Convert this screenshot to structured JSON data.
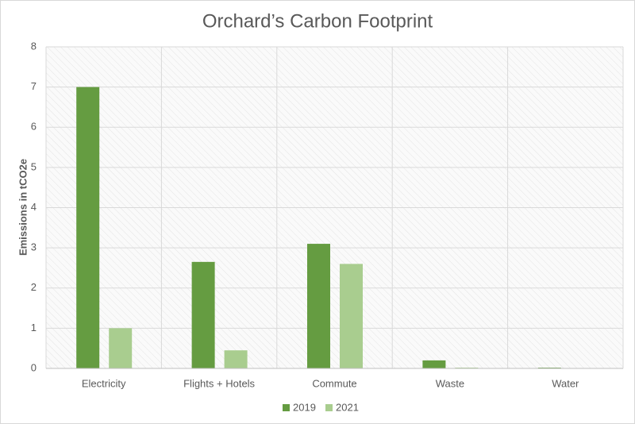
{
  "chart_data": {
    "type": "bar",
    "title": "Orchard’s Carbon Footprint",
    "y_label": "Emissions in tCO2e",
    "categories": [
      "Electricity",
      "Flights + Hotels",
      "Commute",
      "Waste",
      "Water"
    ],
    "series": [
      {
        "name": "2019",
        "color": "#659c41",
        "values": [
          7.0,
          2.65,
          3.1,
          0.2,
          0.02
        ]
      },
      {
        "name": "2021",
        "color": "#a9cd8f",
        "values": [
          1.0,
          0.45,
          2.6,
          0.02,
          0.01
        ]
      }
    ],
    "ylim": [
      0,
      8
    ],
    "yticks": [
      0,
      1,
      2,
      3,
      4,
      5,
      6,
      7,
      8
    ],
    "grid": true,
    "legend": "bottom"
  }
}
